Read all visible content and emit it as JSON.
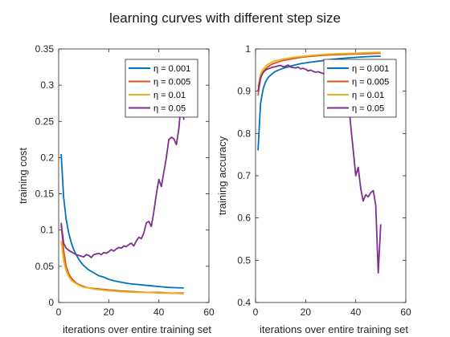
{
  "figure": {
    "title": "learning curves with different step size"
  },
  "colors": {
    "eta_0_001": "#0072BD",
    "eta_0_005": "#D95319",
    "eta_0_01": "#EDB120",
    "eta_0_05": "#7E2F8E"
  },
  "chart_data": [
    {
      "type": "line",
      "title": "",
      "xlabel": "iterations over entire training set",
      "ylabel": "training cost",
      "xlim": [
        0,
        60
      ],
      "ylim": [
        0,
        0.35
      ],
      "xticks": [
        "0",
        "20",
        "40",
        "60"
      ],
      "yticks": [
        "0",
        "0.05",
        "0.1",
        "0.15",
        "0.2",
        "0.25",
        "0.3",
        "0.35"
      ],
      "grid": false,
      "legend_position": "top-right",
      "series": [
        {
          "name": "η = 0.001",
          "color": "#0072BD",
          "x": [
            1,
            2,
            3,
            4,
            5,
            6,
            7,
            8,
            9,
            10,
            12,
            14,
            16,
            18,
            20,
            22,
            25,
            28,
            31,
            34,
            37,
            40,
            43,
            46,
            50
          ],
          "y": [
            0.205,
            0.145,
            0.115,
            0.096,
            0.083,
            0.073,
            0.066,
            0.06,
            0.055,
            0.051,
            0.045,
            0.041,
            0.037,
            0.035,
            0.032,
            0.03,
            0.028,
            0.026,
            0.025,
            0.024,
            0.023,
            0.022,
            0.021,
            0.0205,
            0.02
          ]
        },
        {
          "name": "η = 0.005",
          "color": "#D95319",
          "x": [
            1,
            2,
            3,
            4,
            5,
            6,
            7,
            8,
            10,
            12,
            15,
            18,
            21,
            25,
            30,
            35,
            40,
            45,
            50
          ],
          "y": [
            0.108,
            0.072,
            0.05,
            0.04,
            0.034,
            0.03,
            0.027,
            0.025,
            0.022,
            0.02,
            0.019,
            0.018,
            0.017,
            0.016,
            0.015,
            0.014,
            0.014,
            0.013,
            0.013
          ]
        },
        {
          "name": "η = 0.01",
          "color": "#EDB120",
          "x": [
            1,
            2,
            3,
            4,
            5,
            6,
            7,
            8,
            10,
            12,
            15,
            18,
            21,
            25,
            30,
            35,
            40,
            45,
            50
          ],
          "y": [
            0.085,
            0.058,
            0.044,
            0.036,
            0.031,
            0.028,
            0.026,
            0.024,
            0.021,
            0.02,
            0.018,
            0.017,
            0.016,
            0.015,
            0.014,
            0.014,
            0.013,
            0.013,
            0.012
          ]
        },
        {
          "name": "η = 0.05",
          "color": "#7E2F8E",
          "x": [
            1,
            2,
            3,
            4,
            5,
            6,
            7,
            8,
            9,
            10,
            11,
            12,
            13,
            14,
            15,
            16,
            17,
            18,
            19,
            20,
            21,
            22,
            23,
            24,
            25,
            26,
            27,
            28,
            29,
            30,
            31,
            32,
            33,
            34,
            35,
            36,
            37,
            38,
            39,
            40,
            41,
            42,
            43,
            44,
            45,
            46,
            47,
            48,
            49,
            50
          ],
          "y": [
            0.11,
            0.082,
            0.075,
            0.072,
            0.07,
            0.068,
            0.066,
            0.065,
            0.064,
            0.063,
            0.066,
            0.065,
            0.062,
            0.066,
            0.067,
            0.068,
            0.066,
            0.069,
            0.068,
            0.07,
            0.073,
            0.071,
            0.074,
            0.076,
            0.075,
            0.078,
            0.077,
            0.08,
            0.082,
            0.078,
            0.085,
            0.09,
            0.088,
            0.096,
            0.11,
            0.112,
            0.105,
            0.125,
            0.15,
            0.17,
            0.16,
            0.18,
            0.2,
            0.225,
            0.228,
            0.226,
            0.218,
            0.24,
            0.28,
            0.252
          ]
        }
      ]
    },
    {
      "type": "line",
      "title": "",
      "xlabel": "iterations over entire training set",
      "ylabel": "training accuracy",
      "xlim": [
        0,
        60
      ],
      "ylim": [
        0.4,
        1
      ],
      "xticks": [
        "0",
        "20",
        "40",
        "60"
      ],
      "yticks": [
        "0.4",
        "0.5",
        "0.6",
        "0.7",
        "0.8",
        "0.9",
        "1"
      ],
      "grid": false,
      "legend_position": "top-right",
      "series": [
        {
          "name": "η = 0.001",
          "color": "#0072BD",
          "x": [
            1,
            2,
            3,
            4,
            5,
            6,
            7,
            8,
            10,
            12,
            15,
            18,
            21,
            25,
            30,
            35,
            40,
            45,
            50
          ],
          "y": [
            0.76,
            0.87,
            0.905,
            0.922,
            0.932,
            0.938,
            0.943,
            0.947,
            0.952,
            0.956,
            0.961,
            0.965,
            0.968,
            0.971,
            0.975,
            0.978,
            0.98,
            0.982,
            0.983
          ]
        },
        {
          "name": "η = 0.005",
          "color": "#D95319",
          "x": [
            1,
            2,
            3,
            4,
            5,
            6,
            7,
            8,
            10,
            12,
            15,
            18,
            21,
            25,
            30,
            35,
            40,
            45,
            50
          ],
          "y": [
            0.89,
            0.93,
            0.945,
            0.953,
            0.958,
            0.962,
            0.965,
            0.967,
            0.971,
            0.974,
            0.977,
            0.98,
            0.982,
            0.984,
            0.986,
            0.987,
            0.988,
            0.989,
            0.99
          ]
        },
        {
          "name": "η = 0.01",
          "color": "#EDB120",
          "x": [
            1,
            2,
            3,
            4,
            5,
            6,
            7,
            8,
            10,
            12,
            15,
            18,
            21,
            25,
            30,
            35,
            40,
            45,
            50
          ],
          "y": [
            0.91,
            0.94,
            0.952,
            0.959,
            0.964,
            0.967,
            0.97,
            0.972,
            0.975,
            0.977,
            0.98,
            0.982,
            0.984,
            0.986,
            0.988,
            0.989,
            0.99,
            0.991,
            0.992
          ]
        },
        {
          "name": "η = 0.05",
          "color": "#7E2F8E",
          "x": [
            1,
            2,
            3,
            4,
            5,
            6,
            7,
            8,
            9,
            10,
            11,
            12,
            13,
            14,
            15,
            16,
            17,
            18,
            19,
            20,
            21,
            22,
            23,
            24,
            25,
            26,
            27,
            28,
            29,
            30,
            31,
            32,
            33,
            34,
            35,
            36,
            37,
            38,
            39,
            40,
            41,
            42,
            43,
            44,
            45,
            46,
            47,
            48,
            49,
            50
          ],
          "y": [
            0.9,
            0.932,
            0.944,
            0.95,
            0.953,
            0.955,
            0.957,
            0.958,
            0.96,
            0.961,
            0.958,
            0.959,
            0.962,
            0.957,
            0.956,
            0.955,
            0.957,
            0.953,
            0.954,
            0.952,
            0.948,
            0.95,
            0.947,
            0.945,
            0.946,
            0.944,
            0.942,
            0.938,
            0.936,
            0.94,
            0.93,
            0.92,
            0.915,
            0.9,
            0.87,
            0.86,
            0.88,
            0.82,
            0.76,
            0.7,
            0.72,
            0.67,
            0.64,
            0.655,
            0.65,
            0.66,
            0.665,
            0.63,
            0.47,
            0.585
          ]
        }
      ]
    }
  ]
}
